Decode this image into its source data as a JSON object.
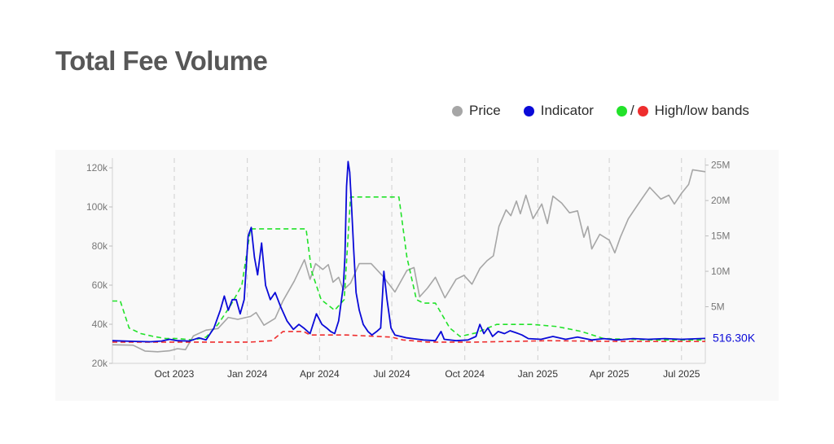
{
  "page": {
    "title": "Total Fee Volume"
  },
  "legend": {
    "price": {
      "label": "Price",
      "color": "#a6a6a6"
    },
    "indicator": {
      "label": "Indicator",
      "color": "#0a0ad8"
    },
    "bands": {
      "label": "High/low bands",
      "separator": "/",
      "high_color": "#22e22a",
      "low_color": "#ee2d2d"
    }
  },
  "chart_data": {
    "type": "line",
    "x_range": [
      "2023-07-15",
      "2025-07-31"
    ],
    "x_tick_labels": [
      {
        "date": "2023-10-01",
        "label": "Oct 2023"
      },
      {
        "date": "2024-01-01",
        "label": "Jan 2024"
      },
      {
        "date": "2024-04-01",
        "label": "Apr 2024"
      },
      {
        "date": "2024-07-01",
        "label": "Jul 2024"
      },
      {
        "date": "2024-10-01",
        "label": "Oct 2024"
      },
      {
        "date": "2025-01-01",
        "label": "Jan 2025"
      },
      {
        "date": "2025-04-01",
        "label": "Apr 2025"
      },
      {
        "date": "2025-07-01",
        "label": "Jul 2025"
      }
    ],
    "y_left": {
      "range": [
        20000,
        125000
      ],
      "ticks": [
        20000,
        40000,
        60000,
        80000,
        100000,
        120000
      ],
      "tick_labels": [
        "20k",
        "40k",
        "60k",
        "80k",
        "100k",
        "120k"
      ]
    },
    "y_right": {
      "range": [
        -3000000,
        26000000
      ],
      "ticks": [
        5000000,
        10000000,
        15000000,
        20000000,
        25000000
      ],
      "tick_labels": [
        "5M",
        "10M",
        "15M",
        "20M",
        "25M"
      ]
    },
    "grid": {
      "vertical_dashed": true,
      "horizontal": false
    },
    "last_value_label": "516.30K",
    "series": [
      {
        "name": "Price",
        "axis": "left",
        "color": "#a6a6a6",
        "dash": false,
        "points": [
          [
            "2023-07-15",
            29500
          ],
          [
            "2023-08-10",
            29300
          ],
          [
            "2023-08-25",
            26300
          ],
          [
            "2023-09-10",
            25900
          ],
          [
            "2023-09-25",
            26400
          ],
          [
            "2023-10-05",
            27500
          ],
          [
            "2023-10-15",
            27000
          ],
          [
            "2023-10-25",
            34000
          ],
          [
            "2023-11-10",
            37000
          ],
          [
            "2023-11-25",
            37800
          ],
          [
            "2023-12-08",
            43500
          ],
          [
            "2023-12-20",
            42500
          ],
          [
            "2024-01-05",
            44000
          ],
          [
            "2024-01-12",
            46000
          ],
          [
            "2024-01-22",
            39500
          ],
          [
            "2024-02-05",
            43000
          ],
          [
            "2024-02-15",
            52000
          ],
          [
            "2024-02-29",
            62000
          ],
          [
            "2024-03-13",
            73000
          ],
          [
            "2024-03-20",
            63000
          ],
          [
            "2024-03-27",
            71000
          ],
          [
            "2024-04-05",
            68000
          ],
          [
            "2024-04-12",
            70500
          ],
          [
            "2024-04-18",
            61500
          ],
          [
            "2024-04-25",
            64000
          ],
          [
            "2024-05-01",
            57500
          ],
          [
            "2024-05-10",
            61000
          ],
          [
            "2024-05-21",
            71000
          ],
          [
            "2024-06-05",
            71000
          ],
          [
            "2024-06-20",
            64500
          ],
          [
            "2024-07-05",
            56500
          ],
          [
            "2024-07-20",
            67500
          ],
          [
            "2024-07-29",
            69000
          ],
          [
            "2024-08-05",
            54000
          ],
          [
            "2024-08-15",
            58500
          ],
          [
            "2024-08-25",
            64000
          ],
          [
            "2024-09-06",
            53500
          ],
          [
            "2024-09-20",
            63000
          ],
          [
            "2024-09-30",
            65000
          ],
          [
            "2024-10-10",
            60500
          ],
          [
            "2024-10-20",
            68500
          ],
          [
            "2024-10-29",
            72500
          ],
          [
            "2024-11-06",
            75000
          ],
          [
            "2024-11-13",
            90000
          ],
          [
            "2024-11-22",
            98500
          ],
          [
            "2024-11-28",
            95500
          ],
          [
            "2024-12-05",
            103000
          ],
          [
            "2024-12-10",
            96500
          ],
          [
            "2024-12-17",
            106000
          ],
          [
            "2024-12-26",
            94000
          ],
          [
            "2025-01-06",
            101500
          ],
          [
            "2025-01-13",
            91500
          ],
          [
            "2025-01-20",
            105500
          ],
          [
            "2025-01-31",
            102000
          ],
          [
            "2025-02-10",
            97000
          ],
          [
            "2025-02-20",
            98000
          ],
          [
            "2025-02-28",
            84500
          ],
          [
            "2025-03-05",
            90000
          ],
          [
            "2025-03-10",
            78500
          ],
          [
            "2025-03-20",
            86000
          ],
          [
            "2025-04-01",
            83000
          ],
          [
            "2025-04-08",
            76500
          ],
          [
            "2025-04-15",
            84500
          ],
          [
            "2025-04-25",
            94000
          ],
          [
            "2025-05-10",
            103000
          ],
          [
            "2025-05-22",
            110000
          ],
          [
            "2025-06-05",
            104000
          ],
          [
            "2025-06-15",
            106000
          ],
          [
            "2025-06-22",
            101500
          ],
          [
            "2025-07-01",
            107000
          ],
          [
            "2025-07-10",
            111500
          ],
          [
            "2025-07-15",
            119000
          ],
          [
            "2025-07-31",
            118000
          ]
        ]
      },
      {
        "name": "Indicator",
        "axis": "right",
        "color": "#0a0ad8",
        "dash": false,
        "points": [
          [
            "2023-07-15",
            200000
          ],
          [
            "2023-08-15",
            100000
          ],
          [
            "2023-09-01",
            50000
          ],
          [
            "2023-09-15",
            150000
          ],
          [
            "2023-09-25",
            400000
          ],
          [
            "2023-10-05",
            200000
          ],
          [
            "2023-10-20",
            150000
          ],
          [
            "2023-11-01",
            600000
          ],
          [
            "2023-11-10",
            300000
          ],
          [
            "2023-11-20",
            2000000
          ],
          [
            "2023-11-28",
            4500000
          ],
          [
            "2023-12-03",
            6500000
          ],
          [
            "2023-12-08",
            4500000
          ],
          [
            "2023-12-13",
            6000000
          ],
          [
            "2023-12-18",
            6000000
          ],
          [
            "2023-12-23",
            4000000
          ],
          [
            "2023-12-28",
            6000000
          ],
          [
            "2024-01-02",
            15000000
          ],
          [
            "2024-01-06",
            16200000
          ],
          [
            "2024-01-10",
            12000000
          ],
          [
            "2024-01-14",
            9500000
          ],
          [
            "2024-01-19",
            14000000
          ],
          [
            "2024-01-24",
            8000000
          ],
          [
            "2024-01-30",
            6000000
          ],
          [
            "2024-02-05",
            7000000
          ],
          [
            "2024-02-12",
            5000000
          ],
          [
            "2024-02-20",
            3000000
          ],
          [
            "2024-02-28",
            1800000
          ],
          [
            "2024-03-06",
            2500000
          ],
          [
            "2024-03-12",
            2000000
          ],
          [
            "2024-03-20",
            1200000
          ],
          [
            "2024-03-28",
            4000000
          ],
          [
            "2024-04-04",
            2500000
          ],
          [
            "2024-04-10",
            2000000
          ],
          [
            "2024-04-15",
            1500000
          ],
          [
            "2024-04-20",
            1200000
          ],
          [
            "2024-04-25",
            3000000
          ],
          [
            "2024-05-01",
            8000000
          ],
          [
            "2024-05-03",
            12000000
          ],
          [
            "2024-05-05",
            22000000
          ],
          [
            "2024-05-07",
            25500000
          ],
          [
            "2024-05-09",
            24000000
          ],
          [
            "2024-05-11",
            20000000
          ],
          [
            "2024-05-14",
            13000000
          ],
          [
            "2024-05-17",
            7000000
          ],
          [
            "2024-05-21",
            4500000
          ],
          [
            "2024-05-26",
            2500000
          ],
          [
            "2024-06-01",
            1500000
          ],
          [
            "2024-06-06",
            1000000
          ],
          [
            "2024-06-12",
            1500000
          ],
          [
            "2024-06-17",
            2000000
          ],
          [
            "2024-06-21",
            10000000
          ],
          [
            "2024-06-25",
            6000000
          ],
          [
            "2024-06-30",
            2000000
          ],
          [
            "2024-07-05",
            1000000
          ],
          [
            "2024-07-20",
            600000
          ],
          [
            "2024-08-10",
            300000
          ],
          [
            "2024-08-25",
            200000
          ],
          [
            "2024-09-01",
            1500000
          ],
          [
            "2024-09-05",
            400000
          ],
          [
            "2024-09-20",
            200000
          ],
          [
            "2024-10-05",
            300000
          ],
          [
            "2024-10-15",
            800000
          ],
          [
            "2024-10-20",
            2500000
          ],
          [
            "2024-10-25",
            1200000
          ],
          [
            "2024-10-30",
            2000000
          ],
          [
            "2024-11-05",
            800000
          ],
          [
            "2024-11-12",
            1500000
          ],
          [
            "2024-11-20",
            1200000
          ],
          [
            "2024-11-27",
            1600000
          ],
          [
            "2024-12-05",
            1300000
          ],
          [
            "2024-12-12",
            1000000
          ],
          [
            "2024-12-20",
            500000
          ],
          [
            "2025-01-05",
            400000
          ],
          [
            "2025-01-20",
            800000
          ],
          [
            "2025-02-05",
            400000
          ],
          [
            "2025-02-20",
            700000
          ],
          [
            "2025-03-10",
            300000
          ],
          [
            "2025-03-25",
            500000
          ],
          [
            "2025-04-10",
            300000
          ],
          [
            "2025-05-01",
            500000
          ],
          [
            "2025-05-20",
            400000
          ],
          [
            "2025-06-10",
            500000
          ],
          [
            "2025-07-01",
            400000
          ],
          [
            "2025-07-31",
            516300
          ]
        ]
      },
      {
        "name": "High band",
        "axis": "right",
        "color": "#22e22a",
        "dash": true,
        "points": [
          [
            "2023-07-15",
            5800000
          ],
          [
            "2023-07-25",
            5800000
          ],
          [
            "2023-08-05",
            2000000
          ],
          [
            "2023-08-20",
            1200000
          ],
          [
            "2023-09-05",
            800000
          ],
          [
            "2023-09-20",
            500000
          ],
          [
            "2023-10-05",
            500000
          ],
          [
            "2023-10-25",
            300000
          ],
          [
            "2023-11-10",
            700000
          ],
          [
            "2023-11-25",
            2500000
          ],
          [
            "2023-12-10",
            5000000
          ],
          [
            "2023-12-25",
            8000000
          ],
          [
            "2024-01-05",
            16000000
          ],
          [
            "2024-03-15",
            16000000
          ],
          [
            "2024-03-22",
            10000000
          ],
          [
            "2024-04-03",
            6000000
          ],
          [
            "2024-04-20",
            4500000
          ],
          [
            "2024-05-02",
            6000000
          ],
          [
            "2024-05-10",
            20500000
          ],
          [
            "2024-07-10",
            20500000
          ],
          [
            "2024-07-20",
            12000000
          ],
          [
            "2024-08-01",
            6000000
          ],
          [
            "2024-08-10",
            5500000
          ],
          [
            "2024-08-25",
            5500000
          ],
          [
            "2024-09-12",
            2000000
          ],
          [
            "2024-09-25",
            800000
          ],
          [
            "2024-10-15",
            1300000
          ],
          [
            "2024-11-10",
            2500000
          ],
          [
            "2024-12-25",
            2500000
          ],
          [
            "2025-01-25",
            2200000
          ],
          [
            "2025-02-25",
            1500000
          ],
          [
            "2025-03-25",
            500000
          ],
          [
            "2025-05-25",
            300000
          ],
          [
            "2025-07-31",
            300000
          ]
        ]
      },
      {
        "name": "Low band",
        "axis": "right",
        "color": "#ee2d2d",
        "dash": true,
        "points": [
          [
            "2023-07-15",
            0
          ],
          [
            "2023-09-15",
            0
          ],
          [
            "2023-10-15",
            0
          ],
          [
            "2024-01-05",
            0
          ],
          [
            "2024-02-01",
            200000
          ],
          [
            "2024-02-15",
            1500000
          ],
          [
            "2024-03-12",
            1500000
          ],
          [
            "2024-03-20",
            1000000
          ],
          [
            "2024-05-05",
            1000000
          ],
          [
            "2024-07-01",
            700000
          ],
          [
            "2024-07-15",
            300000
          ],
          [
            "2024-08-15",
            0
          ],
          [
            "2024-10-15",
            0
          ],
          [
            "2025-01-15",
            200000
          ],
          [
            "2025-04-15",
            100000
          ],
          [
            "2025-07-31",
            100000
          ]
        ]
      }
    ]
  }
}
